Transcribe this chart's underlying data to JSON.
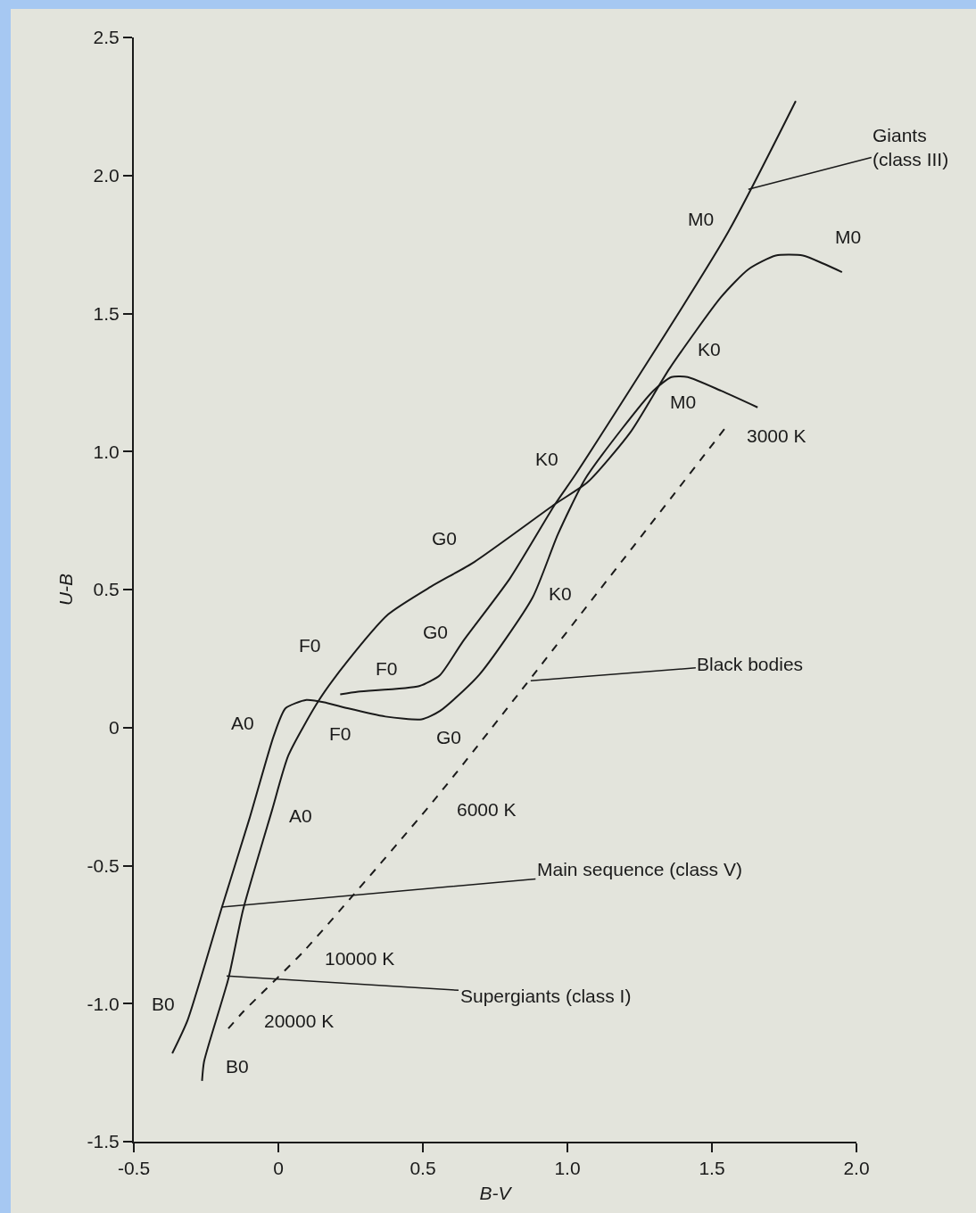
{
  "chart_data": {
    "type": "line",
    "xlabel": "B-V",
    "ylabel": "U-B",
    "xlim": [
      -0.5,
      2.0
    ],
    "ylim": [
      -1.5,
      2.5
    ],
    "xticks": [
      {
        "value": -0.5,
        "label": "-0.5"
      },
      0,
      {
        "value": 0.5,
        "label": "0.5"
      },
      {
        "value": 1,
        "label": "1.0"
      },
      {
        "value": 1.5,
        "label": "1.5"
      },
      {
        "value": 2,
        "label": "2.0"
      }
    ],
    "yticks": [
      {
        "value": -1.5,
        "label": "-1.5"
      },
      {
        "value": -1,
        "label": "-1.0"
      },
      {
        "value": -0.5,
        "label": "-0.5"
      },
      0,
      {
        "value": 0.5,
        "label": "0.5"
      },
      {
        "value": 1,
        "label": "1.0"
      },
      {
        "value": 1.5,
        "label": "1.5"
      },
      {
        "value": 2,
        "label": "2.0"
      },
      {
        "value": 2.5,
        "label": "2.5"
      }
    ],
    "series": [
      {
        "color": "#1a1a1a",
        "line_style": "solid",
        "x": [
          -0.367,
          -0.314,
          -0.195,
          -0.1,
          -0.016,
          0.025,
          0.097,
          0.166,
          0.239,
          0.37,
          0.496,
          0.559,
          0.694,
          0.879,
          0.967,
          1.061,
          1.187,
          1.297,
          1.36,
          1.416,
          1.532,
          1.658
        ],
        "values": [
          -1.18,
          -1.06,
          -0.65,
          -0.33,
          -0.03,
          0.07,
          0.1,
          0.09,
          0.07,
          0.04,
          0.03,
          0.06,
          0.19,
          0.47,
          0.7,
          0.9,
          1.08,
          1.22,
          1.27,
          1.27,
          1.22,
          1.16
        ]
      },
      {
        "color": "#1a1a1a",
        "line_style": "solid",
        "x": [
          -0.264,
          -0.257,
          -0.173,
          -0.122,
          -0.022,
          0.035,
          0.141,
          0.239,
          0.38,
          0.527,
          0.678,
          0.958,
          1.071,
          1.218,
          1.353,
          1.532,
          1.626,
          1.721,
          1.815,
          1.887,
          1.95
        ],
        "values": [
          -1.28,
          -1.21,
          -0.91,
          -0.66,
          -0.3,
          -0.1,
          0.1,
          0.24,
          0.41,
          0.51,
          0.6,
          0.81,
          0.89,
          1.07,
          1.3,
          1.56,
          1.66,
          1.71,
          1.71,
          1.68,
          1.65
        ]
      },
      {
        "color": "#1a1a1a",
        "line_style": "solid",
        "x": [
          0.214,
          0.276,
          0.487,
          0.559,
          0.637,
          0.801,
          0.958,
          1.03,
          1.548,
          1.79
        ],
        "values": [
          0.12,
          0.13,
          0.15,
          0.19,
          0.31,
          0.54,
          0.81,
          0.92,
          1.78,
          2.27
        ]
      },
      {
        "color": "#1a1a1a",
        "line_style": "dashed",
        "x": [
          -0.173,
          -0.122,
          0.088,
          0.549,
          1.557
        ],
        "values": [
          -1.09,
          -1.03,
          -0.81,
          -0.25,
          1.1
        ]
      }
    ],
    "annotations": [
      {
        "text": "B0",
        "x": -0.314,
        "y": -1.06
      },
      {
        "text": "A0",
        "x": -0.016,
        "y": -0.03
      },
      {
        "text": "F0",
        "x": 0.239,
        "y": 0.07
      },
      {
        "text": "G0",
        "x": 0.559,
        "y": 0.06
      },
      {
        "text": "K0",
        "x": 0.879,
        "y": 0.47
      },
      {
        "text": "M0",
        "x": 1.416,
        "y": 1.27
      },
      {
        "text": "B0",
        "x": -0.257,
        "y": -1.21
      },
      {
        "text": "A0",
        "x": -0.022,
        "y": -0.3
      },
      {
        "text": "F0",
        "x": 0.239,
        "y": 0.24
      },
      {
        "text": "G0",
        "x": 0.678,
        "y": 0.6
      },
      {
        "text": "K0",
        "x": 1.353,
        "y": 1.3
      },
      {
        "text": "M0",
        "x": 1.887,
        "y": 1.68
      },
      {
        "text": "F0",
        "x": 0.276,
        "y": 0.13
      },
      {
        "text": "G0",
        "x": 0.637,
        "y": 0.31
      },
      {
        "text": "K0",
        "x": 1.03,
        "y": 0.92
      },
      {
        "text": "M0",
        "x": 1.548,
        "y": 1.78
      },
      {
        "text": "20000 K",
        "x": -0.122,
        "y": -1.03
      },
      {
        "text": "10000 K",
        "x": 0.088,
        "y": -0.81
      },
      {
        "text": "6000 K",
        "x": 0.549,
        "y": -0.25
      },
      {
        "text": "3000 K",
        "x": 1.557,
        "y": 1.1
      },
      {
        "text": "Giants\n(class III)",
        "x": 1.626,
        "y": 1.95
      },
      {
        "text": "Black bodies",
        "x": 0.873,
        "y": 0.17
      },
      {
        "text": "Main sequence (class V)",
        "x": -0.195,
        "y": -0.65
      },
      {
        "text": "Supergiants (class I)",
        "x": -0.179,
        "y": -0.9
      }
    ]
  }
}
